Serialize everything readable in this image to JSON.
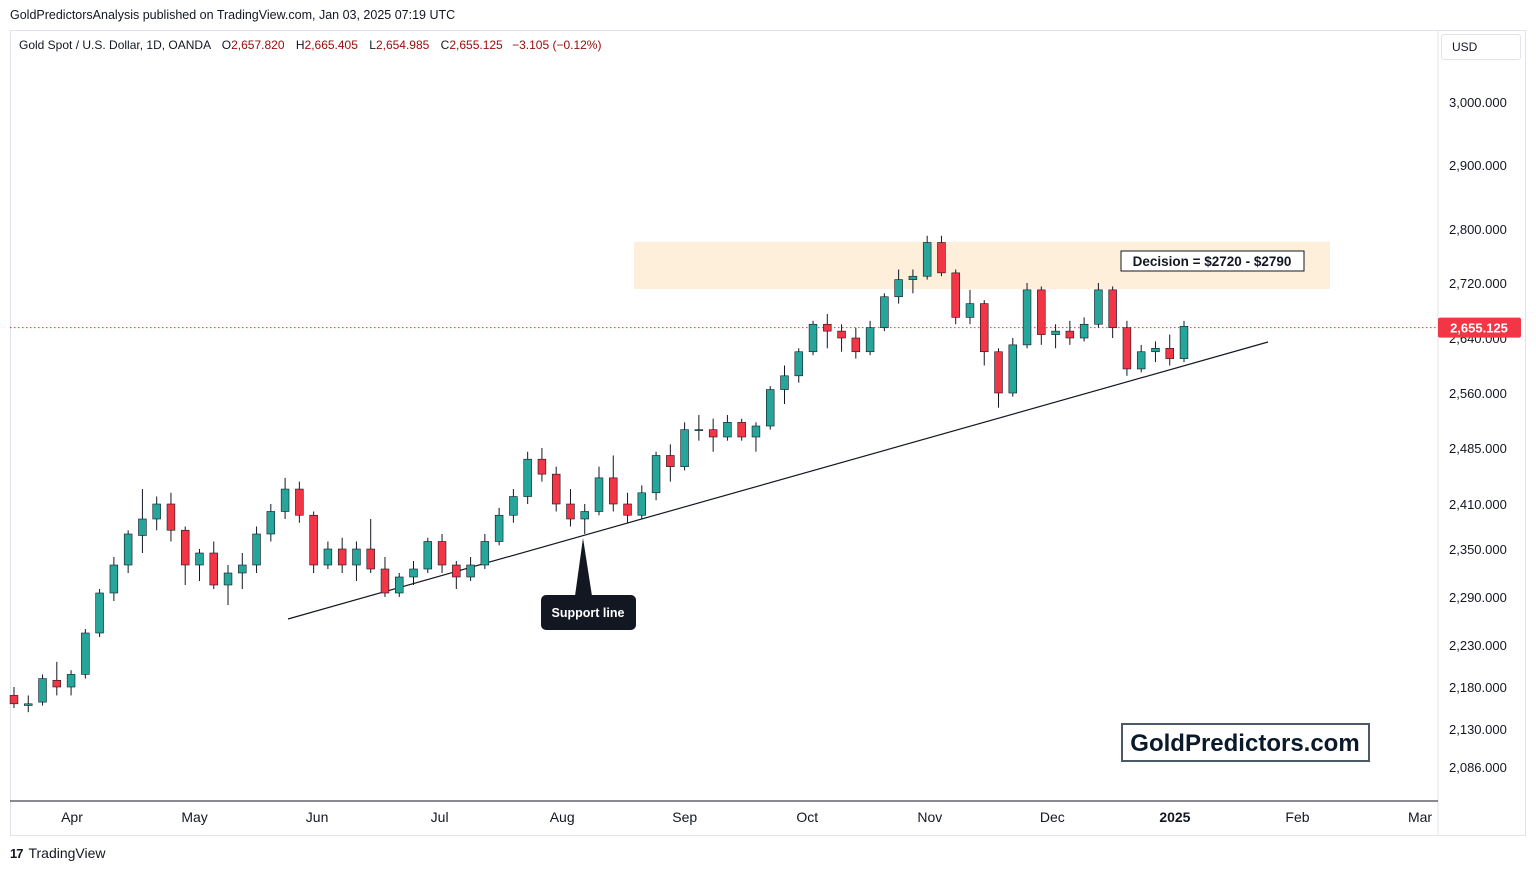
{
  "header": {
    "publisher_line": "GoldPredictorsAnalysis published on TradingView.com, Jan 03, 2025 07:19 UTC"
  },
  "symbol": {
    "name": "Gold Spot / U.S. Dollar, 1D, OANDA",
    "o_label": "O",
    "o_value": "2,657.820",
    "h_label": "H",
    "h_value": "2,665.405",
    "l_label": "L",
    "l_value": "2,654.985",
    "c_label": "C",
    "c_value": "2,655.125",
    "change": "−3.105 (−0.12%)"
  },
  "currency": "USD",
  "footer": {
    "logo": "17",
    "brand": "TradingView"
  },
  "colors": {
    "up": "#22ab94",
    "up_fill": "#26a69a",
    "down": "#f23645",
    "price_line": "#f23645",
    "zone": "#fdefd9"
  },
  "chart_data": {
    "type": "candlestick",
    "title": "",
    "ylabel": "",
    "xlabel": "",
    "y_axis_label_unit": "USD",
    "x_range": [
      -1,
      70
    ],
    "y_ticks": [
      {
        "value": 2086,
        "label": "2,086.000"
      },
      {
        "value": 2130,
        "label": "2,130.000"
      },
      {
        "value": 2180,
        "label": "2,180.000"
      },
      {
        "value": 2230,
        "label": "2,230.000"
      },
      {
        "value": 2290,
        "label": "2,290.000"
      },
      {
        "value": 2350,
        "label": "2,350.000"
      },
      {
        "value": 2410,
        "label": "2,410.000"
      },
      {
        "value": 2485,
        "label": "2,485.000"
      },
      {
        "value": 2560,
        "label": "2,560.000"
      },
      {
        "value": 2640,
        "label": "2,640.000"
      },
      {
        "value": 2720,
        "label": "2,720.000"
      },
      {
        "value": 2800,
        "label": "2,800.000"
      },
      {
        "value": 2900,
        "label": "2,900.000"
      },
      {
        "value": 3000,
        "label": "3,000.000"
      }
    ],
    "x_ticks": [
      {
        "index": 3,
        "label": "Apr"
      },
      {
        "index": 9,
        "label": "May"
      },
      {
        "index": 15,
        "label": "Jun"
      },
      {
        "index": 21,
        "label": "Jul"
      },
      {
        "index": 27,
        "label": "Aug"
      },
      {
        "index": 33,
        "label": "Sep"
      },
      {
        "index": 39,
        "label": "Oct"
      },
      {
        "index": 45,
        "label": "Nov"
      },
      {
        "index": 51,
        "label": "Dec"
      },
      {
        "index": 57,
        "label": "2025",
        "bold": true
      },
      {
        "index": 63,
        "label": "Feb"
      },
      {
        "index": 69,
        "label": "Mar"
      }
    ],
    "current_price": {
      "value": 2655.125,
      "label": "2,655.125"
    },
    "candles": [
      {
        "o": 2170,
        "h": 2180,
        "l": 2155,
        "c": 2160
      },
      {
        "o": 2158,
        "h": 2170,
        "l": 2150,
        "c": 2160
      },
      {
        "o": 2162,
        "h": 2195,
        "l": 2158,
        "c": 2190
      },
      {
        "o": 2188,
        "h": 2210,
        "l": 2170,
        "c": 2180
      },
      {
        "o": 2180,
        "h": 2200,
        "l": 2170,
        "c": 2195
      },
      {
        "o": 2195,
        "h": 2250,
        "l": 2190,
        "c": 2245
      },
      {
        "o": 2245,
        "h": 2300,
        "l": 2240,
        "c": 2295
      },
      {
        "o": 2295,
        "h": 2340,
        "l": 2285,
        "c": 2330
      },
      {
        "o": 2330,
        "h": 2375,
        "l": 2320,
        "c": 2370
      },
      {
        "o": 2368,
        "h": 2430,
        "l": 2345,
        "c": 2390
      },
      {
        "o": 2390,
        "h": 2420,
        "l": 2375,
        "c": 2410
      },
      {
        "o": 2410,
        "h": 2425,
        "l": 2360,
        "c": 2375
      },
      {
        "o": 2375,
        "h": 2380,
        "l": 2305,
        "c": 2330
      },
      {
        "o": 2330,
        "h": 2350,
        "l": 2310,
        "c": 2345
      },
      {
        "o": 2345,
        "h": 2360,
        "l": 2300,
        "c": 2305
      },
      {
        "o": 2305,
        "h": 2330,
        "l": 2280,
        "c": 2320
      },
      {
        "o": 2320,
        "h": 2345,
        "l": 2300,
        "c": 2330
      },
      {
        "o": 2330,
        "h": 2380,
        "l": 2320,
        "c": 2370
      },
      {
        "o": 2370,
        "h": 2410,
        "l": 2360,
        "c": 2400
      },
      {
        "o": 2400,
        "h": 2445,
        "l": 2390,
        "c": 2430
      },
      {
        "o": 2430,
        "h": 2440,
        "l": 2385,
        "c": 2395
      },
      {
        "o": 2395,
        "h": 2400,
        "l": 2320,
        "c": 2330
      },
      {
        "o": 2330,
        "h": 2360,
        "l": 2325,
        "c": 2350
      },
      {
        "o": 2350,
        "h": 2365,
        "l": 2320,
        "c": 2330
      },
      {
        "o": 2330,
        "h": 2360,
        "l": 2310,
        "c": 2350
      },
      {
        "o": 2350,
        "h": 2390,
        "l": 2320,
        "c": 2325
      },
      {
        "o": 2325,
        "h": 2340,
        "l": 2290,
        "c": 2295
      },
      {
        "o": 2295,
        "h": 2320,
        "l": 2290,
        "c": 2315
      },
      {
        "o": 2315,
        "h": 2335,
        "l": 2305,
        "c": 2325
      },
      {
        "o": 2325,
        "h": 2365,
        "l": 2320,
        "c": 2360
      },
      {
        "o": 2360,
        "h": 2370,
        "l": 2320,
        "c": 2330
      },
      {
        "o": 2330,
        "h": 2335,
        "l": 2300,
        "c": 2315
      },
      {
        "o": 2315,
        "h": 2340,
        "l": 2310,
        "c": 2330
      },
      {
        "o": 2330,
        "h": 2370,
        "l": 2325,
        "c": 2360
      },
      {
        "o": 2360,
        "h": 2405,
        "l": 2355,
        "c": 2395
      },
      {
        "o": 2395,
        "h": 2430,
        "l": 2385,
        "c": 2420
      },
      {
        "o": 2420,
        "h": 2480,
        "l": 2410,
        "c": 2470
      },
      {
        "o": 2470,
        "h": 2485,
        "l": 2440,
        "c": 2450
      },
      {
        "o": 2450,
        "h": 2460,
        "l": 2400,
        "c": 2410
      },
      {
        "o": 2410,
        "h": 2430,
        "l": 2380,
        "c": 2390
      },
      {
        "o": 2390,
        "h": 2410,
        "l": 2370,
        "c": 2400
      },
      {
        "o": 2400,
        "h": 2460,
        "l": 2395,
        "c": 2445
      },
      {
        "o": 2445,
        "h": 2475,
        "l": 2400,
        "c": 2410
      },
      {
        "o": 2410,
        "h": 2425,
        "l": 2385,
        "c": 2395
      },
      {
        "o": 2395,
        "h": 2435,
        "l": 2390,
        "c": 2425
      },
      {
        "o": 2425,
        "h": 2480,
        "l": 2415,
        "c": 2475
      },
      {
        "o": 2475,
        "h": 2490,
        "l": 2440,
        "c": 2460
      },
      {
        "o": 2460,
        "h": 2520,
        "l": 2455,
        "c": 2510
      },
      {
        "o": 2510,
        "h": 2530,
        "l": 2495,
        "c": 2510
      },
      {
        "o": 2510,
        "h": 2525,
        "l": 2480,
        "c": 2500
      },
      {
        "o": 2500,
        "h": 2530,
        "l": 2495,
        "c": 2520
      },
      {
        "o": 2520,
        "h": 2525,
        "l": 2495,
        "c": 2500
      },
      {
        "o": 2500,
        "h": 2520,
        "l": 2480,
        "c": 2515
      },
      {
        "o": 2515,
        "h": 2570,
        "l": 2510,
        "c": 2565
      },
      {
        "o": 2565,
        "h": 2600,
        "l": 2545,
        "c": 2585
      },
      {
        "o": 2585,
        "h": 2625,
        "l": 2575,
        "c": 2620
      },
      {
        "o": 2620,
        "h": 2665,
        "l": 2615,
        "c": 2660
      },
      {
        "o": 2660,
        "h": 2675,
        "l": 2625,
        "c": 2650
      },
      {
        "o": 2650,
        "h": 2660,
        "l": 2620,
        "c": 2640
      },
      {
        "o": 2640,
        "h": 2655,
        "l": 2610,
        "c": 2620
      },
      {
        "o": 2620,
        "h": 2665,
        "l": 2615,
        "c": 2655
      },
      {
        "o": 2655,
        "h": 2705,
        "l": 2650,
        "c": 2700
      },
      {
        "o": 2700,
        "h": 2740,
        "l": 2690,
        "c": 2725
      },
      {
        "o": 2725,
        "h": 2740,
        "l": 2705,
        "c": 2730
      },
      {
        "o": 2730,
        "h": 2790,
        "l": 2725,
        "c": 2780
      },
      {
        "o": 2780,
        "h": 2790,
        "l": 2730,
        "c": 2735
      },
      {
        "o": 2735,
        "h": 2740,
        "l": 2660,
        "c": 2670
      },
      {
        "o": 2670,
        "h": 2710,
        "l": 2660,
        "c": 2690
      },
      {
        "o": 2690,
        "h": 2695,
        "l": 2600,
        "c": 2620
      },
      {
        "o": 2620,
        "h": 2625,
        "l": 2540,
        "c": 2560
      },
      {
        "o": 2560,
        "h": 2640,
        "l": 2555,
        "c": 2630
      },
      {
        "o": 2630,
        "h": 2720,
        "l": 2625,
        "c": 2710
      },
      {
        "o": 2710,
        "h": 2715,
        "l": 2630,
        "c": 2645
      },
      {
        "o": 2645,
        "h": 2660,
        "l": 2625,
        "c": 2650
      },
      {
        "o": 2650,
        "h": 2665,
        "l": 2630,
        "c": 2640
      },
      {
        "o": 2640,
        "h": 2670,
        "l": 2635,
        "c": 2660
      },
      {
        "o": 2660,
        "h": 2720,
        "l": 2655,
        "c": 2710
      },
      {
        "o": 2710,
        "h": 2715,
        "l": 2640,
        "c": 2655
      },
      {
        "o": 2655,
        "h": 2665,
        "l": 2585,
        "c": 2595
      },
      {
        "o": 2595,
        "h": 2630,
        "l": 2590,
        "c": 2620
      },
      {
        "o": 2620,
        "h": 2635,
        "l": 2605,
        "c": 2625
      },
      {
        "o": 2625,
        "h": 2645,
        "l": 2600,
        "c": 2610
      },
      {
        "o": 2610,
        "h": 2665,
        "l": 2605,
        "c": 2657
      }
    ]
  },
  "annotations": {
    "decision_label": "Decision = $2720 - $2790",
    "decision_zone": [
      2720,
      2790
    ],
    "support_label": "Support line",
    "watermark": "GoldPredictors.com"
  }
}
